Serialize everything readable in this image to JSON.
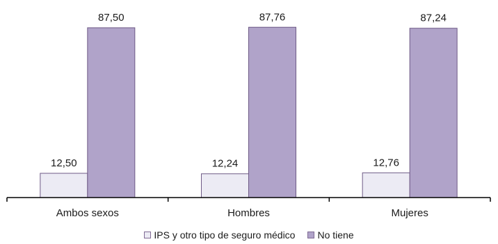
{
  "chart_data": {
    "type": "bar",
    "categories": [
      "Ambos sexos",
      "Hombres",
      "Mujeres"
    ],
    "series": [
      {
        "name": "IPS y otro tipo de seguro médico",
        "values": [
          12.5,
          12.24,
          12.76
        ],
        "labels": [
          "12,50",
          "12,24",
          "12,76"
        ],
        "color": "#ecebf4"
      },
      {
        "name": "No tiene",
        "values": [
          87.5,
          87.76,
          87.24
        ],
        "labels": [
          "87,50",
          "87,76",
          "87,24"
        ],
        "color": "#b0a3c9"
      }
    ],
    "ylim": [
      0,
      100
    ],
    "legend": "bottom",
    "grid": false
  }
}
